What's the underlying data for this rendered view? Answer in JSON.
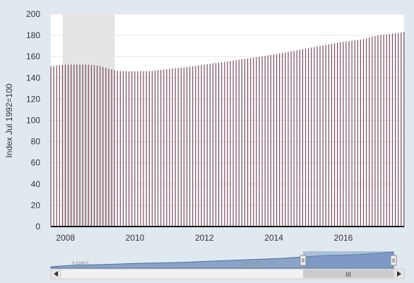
{
  "chart_data": {
    "type": "bar",
    "title": "",
    "xlabel": "",
    "ylabel": "Index Jul 1992=100",
    "ylim": [
      0,
      200
    ],
    "y_ticks": [
      "0",
      "20",
      "40",
      "60",
      "80",
      "100",
      "120",
      "140",
      "160",
      "180",
      "200"
    ],
    "x_range": [
      2007.58,
      2017.75
    ],
    "x_ticks": [
      "2008",
      "2010",
      "2012",
      "2014",
      "2016"
    ],
    "grid": true,
    "legend": "none",
    "recession_shading": [
      2007.92,
      2009.42
    ],
    "bar_color": "#7a4a5e",
    "series_keypoints": [
      {
        "x": 2007.58,
        "y": 151
      },
      {
        "x": 2008.0,
        "y": 152.5
      },
      {
        "x": 2008.7,
        "y": 152.5
      },
      {
        "x": 2009.0,
        "y": 151
      },
      {
        "x": 2009.5,
        "y": 146.5
      },
      {
        "x": 2010.0,
        "y": 146
      },
      {
        "x": 2010.5,
        "y": 146.5
      },
      {
        "x": 2011.0,
        "y": 148.5
      },
      {
        "x": 2011.5,
        "y": 150
      },
      {
        "x": 2012.0,
        "y": 152.5
      },
      {
        "x": 2013.0,
        "y": 157
      },
      {
        "x": 2014.0,
        "y": 162
      },
      {
        "x": 2015.0,
        "y": 168
      },
      {
        "x": 2016.0,
        "y": 174
      },
      {
        "x": 2016.5,
        "y": 176
      },
      {
        "x": 2017.0,
        "y": 180
      },
      {
        "x": 2017.75,
        "y": 183
      }
    ]
  },
  "navigator": {
    "labels": [
      "1980",
      "2000"
    ],
    "scroll_grip": "III",
    "left_arrow": "◀",
    "right_arrow": "▶",
    "handle_glyph": "|||"
  }
}
